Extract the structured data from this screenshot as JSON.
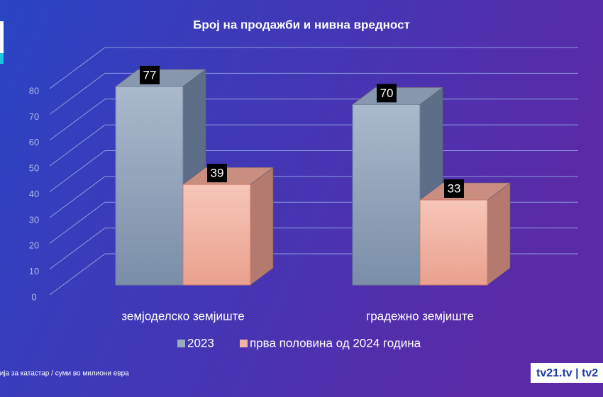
{
  "chart_data": {
    "type": "bar3d",
    "title": "Број на продажби и нивна вредност",
    "categories": [
      "земјоделско земјиште",
      "градежно земјиште"
    ],
    "series": [
      {
        "name": "2023",
        "color": "#9aaabf",
        "values": [
          77,
          70
        ]
      },
      {
        "name": "прва половина од 2024 година",
        "color": "#f0b4a4",
        "values": [
          39,
          33
        ]
      }
    ],
    "ylim": [
      0,
      80
    ],
    "yticks": [
      0,
      10,
      20,
      30,
      40,
      50,
      60,
      70,
      80
    ],
    "grid": true
  },
  "source": "ција за катастар / суми во милиони евра",
  "logo": "tv21.tv | tv2"
}
